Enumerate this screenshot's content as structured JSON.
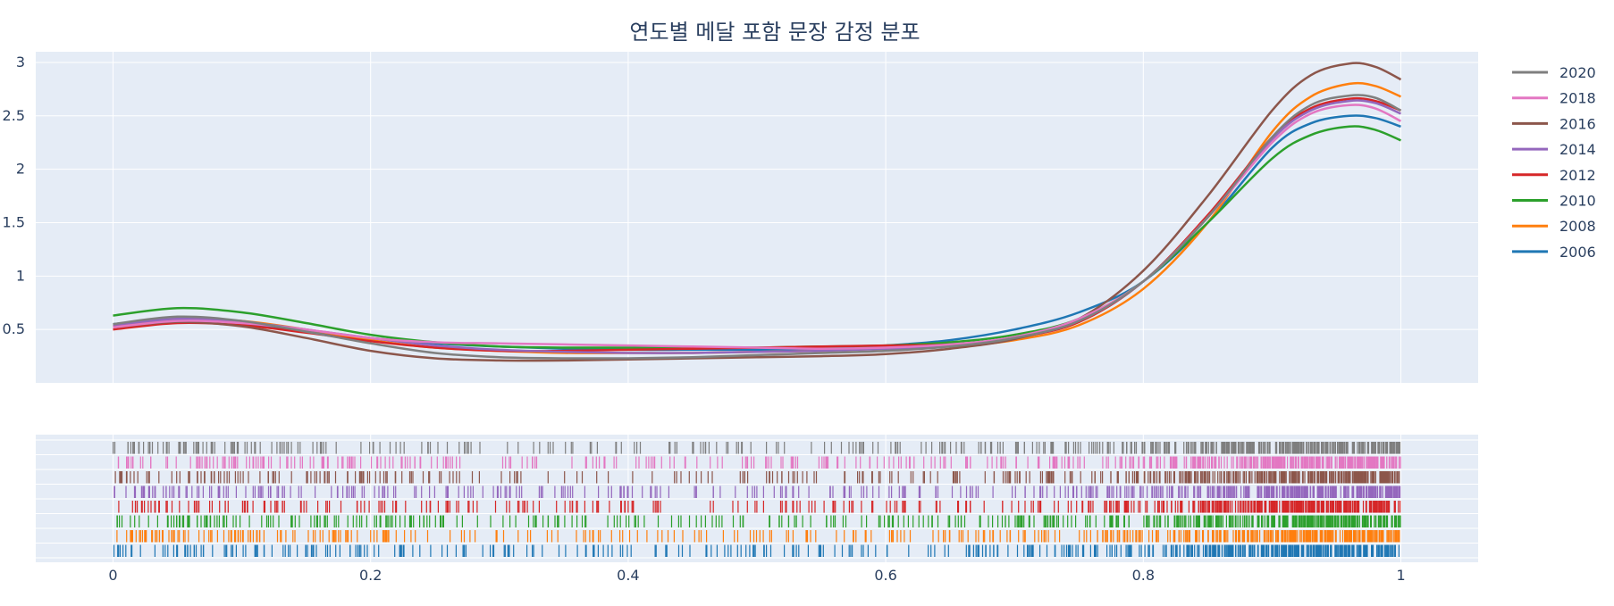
{
  "chart_data": {
    "type": "line",
    "title": "연도별 메달 포함 문장 감정 분포",
    "xlabel": "",
    "ylabel": "",
    "xlim": [
      -0.06,
      1.06
    ],
    "ylim": [
      0,
      3.1
    ],
    "x_ticks": [
      "0",
      "0.2",
      "0.4",
      "0.6",
      "0.8",
      "1"
    ],
    "y_ticks": [
      "0.5",
      "1",
      "1.5",
      "2",
      "2.5",
      "3"
    ],
    "grid": true,
    "legend_position": "right",
    "x": [
      0,
      0.05,
      0.1,
      0.15,
      0.2,
      0.25,
      0.3,
      0.35,
      0.4,
      0.45,
      0.5,
      0.55,
      0.6,
      0.65,
      0.7,
      0.75,
      0.8,
      0.85,
      0.9,
      0.93,
      0.96,
      0.98,
      1.0
    ],
    "series": [
      {
        "name": "2020",
        "color": "#7f7f7f",
        "values": [
          0.55,
          0.62,
          0.58,
          0.48,
          0.37,
          0.28,
          0.24,
          0.23,
          0.23,
          0.24,
          0.26,
          0.28,
          0.3,
          0.34,
          0.42,
          0.58,
          0.95,
          1.55,
          2.3,
          2.6,
          2.69,
          2.67,
          2.55
        ]
      },
      {
        "name": "2018",
        "color": "#e377c2",
        "values": [
          0.52,
          0.58,
          0.56,
          0.5,
          0.42,
          0.38,
          0.37,
          0.36,
          0.35,
          0.34,
          0.33,
          0.32,
          0.33,
          0.36,
          0.43,
          0.6,
          0.95,
          1.55,
          2.25,
          2.52,
          2.6,
          2.57,
          2.45
        ]
      },
      {
        "name": "2016",
        "color": "#8c564b",
        "values": [
          0.52,
          0.57,
          0.53,
          0.42,
          0.3,
          0.23,
          0.21,
          0.21,
          0.22,
          0.23,
          0.24,
          0.25,
          0.27,
          0.32,
          0.41,
          0.6,
          1.05,
          1.75,
          2.55,
          2.88,
          2.99,
          2.96,
          2.84
        ]
      },
      {
        "name": "2014",
        "color": "#9467bd",
        "values": [
          0.54,
          0.6,
          0.57,
          0.5,
          0.42,
          0.35,
          0.31,
          0.29,
          0.28,
          0.28,
          0.29,
          0.3,
          0.32,
          0.35,
          0.42,
          0.58,
          0.95,
          1.55,
          2.28,
          2.55,
          2.64,
          2.62,
          2.52
        ]
      },
      {
        "name": "2012",
        "color": "#d62728",
        "values": [
          0.5,
          0.56,
          0.54,
          0.47,
          0.39,
          0.33,
          0.3,
          0.3,
          0.31,
          0.32,
          0.33,
          0.34,
          0.35,
          0.36,
          0.42,
          0.57,
          0.95,
          1.57,
          2.3,
          2.57,
          2.66,
          2.64,
          2.55
        ]
      },
      {
        "name": "2010",
        "color": "#2ca02c",
        "values": [
          0.63,
          0.7,
          0.66,
          0.56,
          0.45,
          0.38,
          0.34,
          0.33,
          0.33,
          0.33,
          0.33,
          0.34,
          0.35,
          0.38,
          0.45,
          0.6,
          0.95,
          1.5,
          2.1,
          2.32,
          2.4,
          2.37,
          2.27
        ]
      },
      {
        "name": "2008",
        "color": "#ff7f0e",
        "values": [
          0.53,
          0.6,
          0.58,
          0.5,
          0.4,
          0.33,
          0.3,
          0.28,
          0.28,
          0.28,
          0.29,
          0.3,
          0.32,
          0.34,
          0.4,
          0.54,
          0.88,
          1.5,
          2.35,
          2.68,
          2.8,
          2.78,
          2.68
        ]
      },
      {
        "name": "2006",
        "color": "#1f77b4",
        "values": [
          0.55,
          0.6,
          0.56,
          0.48,
          0.42,
          0.37,
          0.34,
          0.32,
          0.31,
          0.31,
          0.31,
          0.32,
          0.35,
          0.4,
          0.5,
          0.66,
          0.95,
          1.5,
          2.2,
          2.43,
          2.5,
          2.48,
          2.4
        ]
      }
    ]
  }
}
